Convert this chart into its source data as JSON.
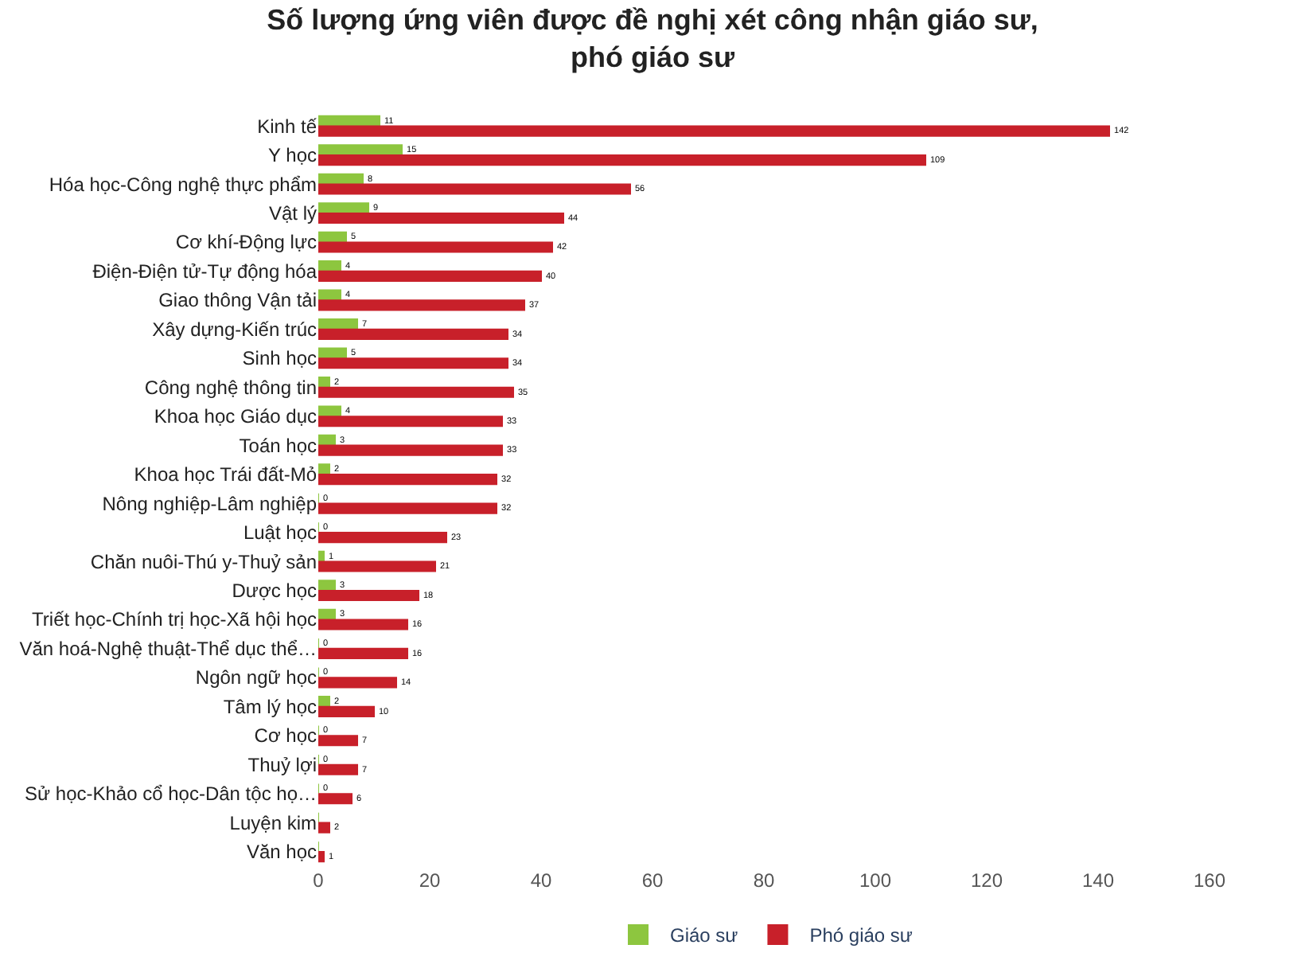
{
  "chart_data": {
    "type": "bar",
    "orientation": "horizontal",
    "title": "Số lượng ứng viên được đề nghị xét công nhận giáo sư,\nphó giáo sư",
    "categories": [
      "Kinh tế",
      "Y học",
      "Hóa học-Công nghệ thực phẩm",
      "Vật lý",
      "Cơ khí-Động lực",
      "Điện-Điện tử-Tự động hóa",
      "Giao thông Vận tải",
      "Xây dựng-Kiến trúc",
      "Sinh học",
      "Công nghệ thông tin",
      "Khoa học Giáo dục",
      "Toán học",
      "Khoa học Trái đất-Mỏ",
      "Nông nghiệp-Lâm nghiệp",
      "Luật học",
      "Chăn nuôi-Thú y-Thuỷ sản",
      "Dược học",
      "Triết học-Chính trị học-Xã hội học",
      "Văn hoá-Nghệ thuật-Thể dục thể…",
      "Ngôn ngữ học",
      "Tâm lý học",
      "Cơ học",
      "Thuỷ lợi",
      "Sử học-Khảo cổ học-Dân tộc họ…",
      "Luyện kim",
      "Văn học"
    ],
    "series": [
      {
        "name": "Giáo sư",
        "color": "#8dc63f",
        "values": [
          11,
          15,
          8,
          9,
          5,
          4,
          4,
          7,
          5,
          2,
          4,
          3,
          2,
          0,
          0,
          1,
          3,
          3,
          0,
          0,
          2,
          0,
          0,
          0,
          0,
          0
        ],
        "value_labels": [
          "11",
          "15",
          "8",
          "9",
          "5",
          "4",
          "4",
          "7",
          "5",
          "2",
          "4",
          "3",
          "2",
          "0",
          "0",
          "1",
          "3",
          "3",
          "0",
          "0",
          "2",
          "0",
          "0",
          "0",
          null,
          null
        ]
      },
      {
        "name": "Phó giáo sư",
        "color": "#c8202a",
        "values": [
          142,
          109,
          56,
          44,
          42,
          40,
          37,
          34,
          34,
          35,
          33,
          33,
          32,
          32,
          23,
          21,
          18,
          16,
          16,
          14,
          10,
          7,
          7,
          6,
          2,
          1
        ],
        "value_labels": [
          "142",
          "109",
          "56",
          "44",
          "42",
          "40",
          "37",
          "34",
          "34",
          "35",
          "33",
          "33",
          "32",
          "32",
          "23",
          "21",
          "18",
          "16",
          "16",
          "14",
          "10",
          "7",
          "7",
          "6",
          "2",
          "1"
        ]
      }
    ],
    "xlim": [
      0,
      160
    ],
    "xticks": [
      0,
      20,
      40,
      60,
      80,
      100,
      120,
      140,
      160
    ],
    "legend": "bottom"
  }
}
